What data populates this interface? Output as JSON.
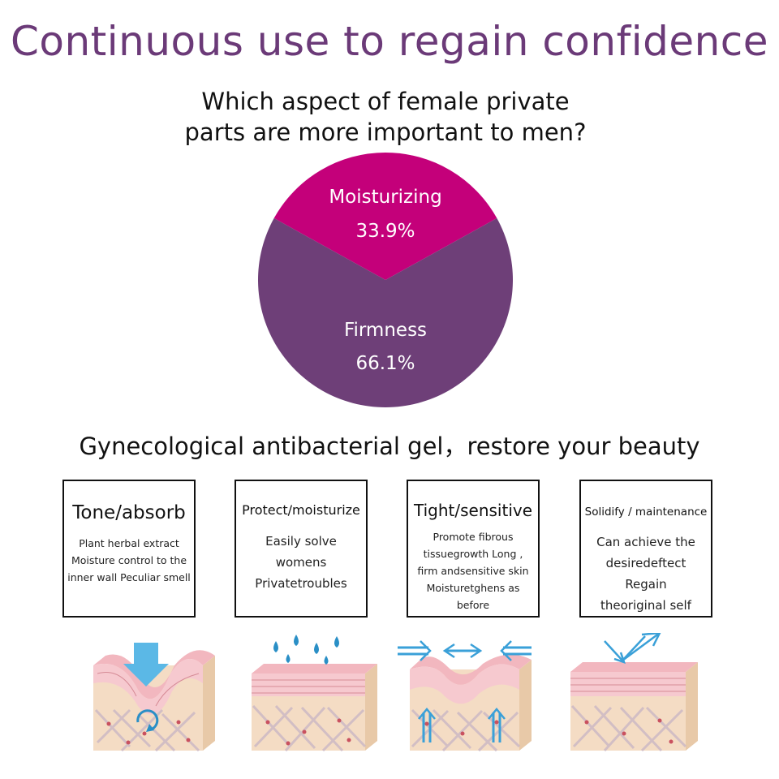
{
  "headline": "Continuous use to regain confidence",
  "question": {
    "line1": "Which aspect of female private",
    "line2": "parts are more important to men?"
  },
  "chart_data": {
    "type": "pie",
    "title": "",
    "slices": [
      {
        "label": "Moisturizing",
        "value": 33.9,
        "value_label": "33.9%",
        "color": "#c4007a"
      },
      {
        "label": "Firmness",
        "value": 66.1,
        "value_label": "66.1%",
        "color": "#6e3f78"
      }
    ]
  },
  "subheading": "Gynecological antibacterial gel，restore your beauty",
  "cards": [
    {
      "title": "Tone/absorb",
      "body": [
        "Plant herbal extract",
        "Moisture control to the",
        "inner wall Peculiar smell"
      ]
    },
    {
      "title": "Protect/moisturize",
      "body": [
        "Easily solve womens",
        "Privatetroubles"
      ]
    },
    {
      "title": "Tight/sensitive",
      "body": [
        "Promote fibrous",
        "tissuegrowth Long ,",
        "firm andsensitive skin",
        "Moisturetghens as before"
      ]
    },
    {
      "title": "Solidify / maintenance",
      "body": [
        "Can achieve the",
        "desiredeftect Regain",
        "theoriginal self"
      ]
    }
  ],
  "illustrations": [
    {
      "icon": "skin-absorb-illustration",
      "accent": "#5bb8e6"
    },
    {
      "icon": "skin-moisturize-illustration",
      "accent": "#2a8fc6"
    },
    {
      "icon": "skin-tighten-illustration",
      "accent": "#3aa0d8"
    },
    {
      "icon": "skin-protect-illustration",
      "accent": "#3aa0d8"
    }
  ]
}
